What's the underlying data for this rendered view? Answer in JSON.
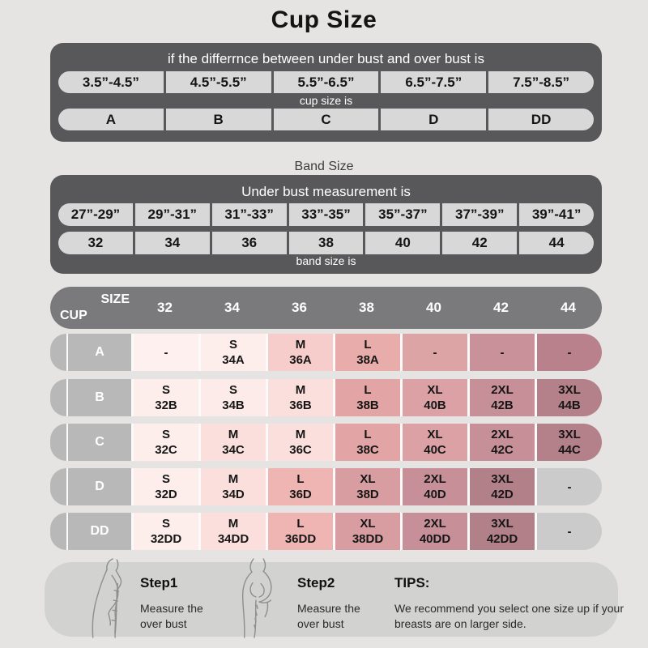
{
  "title": "Cup Size",
  "cup_section": {
    "caption": "if the differrnce between under bust and over bust is",
    "ranges": [
      "3.5”-4.5”",
      "4.5”-5.5”",
      "5.5”-6.5”",
      "6.5”-7.5”",
      "7.5”-8.5”"
    ],
    "mid_label": "cup size is",
    "cups": [
      "A",
      "B",
      "C",
      "D",
      "DD"
    ]
  },
  "band_section": {
    "title": "Band Size",
    "caption": "Under bust measurement is",
    "ranges": [
      "27”-29”",
      "29”-31”",
      "31”-33”",
      "33”-35”",
      "35”-37”",
      "37”-39”",
      "39”-41”"
    ],
    "bands": [
      "32",
      "34",
      "36",
      "38",
      "40",
      "42",
      "44"
    ],
    "bottom_label": "band size is"
  },
  "matrix": {
    "corner_top": "SIZE",
    "corner_bottom": "CUP",
    "columns": [
      "32",
      "34",
      "36",
      "38",
      "40",
      "42",
      "44"
    ],
    "rows": [
      {
        "cup": "A",
        "cells": [
          {
            "size": "-",
            "code": "",
            "bg": "#fdf0ee"
          },
          {
            "size": "S",
            "code": "34A",
            "bg": "#fdeeec"
          },
          {
            "size": "M",
            "code": "36A",
            "bg": "#f6cdca"
          },
          {
            "size": "L",
            "code": "38A",
            "bg": "#e8acab"
          },
          {
            "size": "-",
            "code": "",
            "bg": "#dda4a6"
          },
          {
            "size": "-",
            "code": "",
            "bg": "#c9929b"
          },
          {
            "size": "-",
            "code": "",
            "bg": "#b9818b"
          }
        ]
      },
      {
        "cup": "B",
        "cells": [
          {
            "size": "S",
            "code": "32B",
            "bg": "#fdeeec"
          },
          {
            "size": "S",
            "code": "34B",
            "bg": "#fcebe9"
          },
          {
            "size": "M",
            "code": "36B",
            "bg": "#fbdfdc"
          },
          {
            "size": "L",
            "code": "38B",
            "bg": "#e2a4a4"
          },
          {
            "size": "XL",
            "code": "40B",
            "bg": "#dba1a4"
          },
          {
            "size": "2XL",
            "code": "42B",
            "bg": "#c79099"
          },
          {
            "size": "3XL",
            "code": "44B",
            "bg": "#b48089"
          }
        ]
      },
      {
        "cup": "C",
        "cells": [
          {
            "size": "S",
            "code": "32C",
            "bg": "#fdeeec"
          },
          {
            "size": "M",
            "code": "34C",
            "bg": "#fbdfdc"
          },
          {
            "size": "M",
            "code": "36C",
            "bg": "#fbdfdc"
          },
          {
            "size": "L",
            "code": "38C",
            "bg": "#e2a4a4"
          },
          {
            "size": "XL",
            "code": "40C",
            "bg": "#dba1a4"
          },
          {
            "size": "2XL",
            "code": "42C",
            "bg": "#c79099"
          },
          {
            "size": "3XL",
            "code": "44C",
            "bg": "#b48089"
          }
        ]
      },
      {
        "cup": "D",
        "cells": [
          {
            "size": "S",
            "code": "32D",
            "bg": "#fdeeec"
          },
          {
            "size": "M",
            "code": "34D",
            "bg": "#fbdfdc"
          },
          {
            "size": "L",
            "code": "36D",
            "bg": "#eeb5b2"
          },
          {
            "size": "XL",
            "code": "38D",
            "bg": "#d89da0"
          },
          {
            "size": "2XL",
            "code": "40D",
            "bg": "#c79099"
          },
          {
            "size": "3XL",
            "code": "42D",
            "bg": "#b28089"
          },
          {
            "size": "-",
            "code": "",
            "bg": "#cbcbcb"
          }
        ]
      },
      {
        "cup": "DD",
        "cells": [
          {
            "size": "S",
            "code": "32DD",
            "bg": "#fdeeec"
          },
          {
            "size": "M",
            "code": "34DD",
            "bg": "#fbdfdc"
          },
          {
            "size": "L",
            "code": "36DD",
            "bg": "#eeb5b2"
          },
          {
            "size": "XL",
            "code": "38DD",
            "bg": "#d89da0"
          },
          {
            "size": "2XL",
            "code": "40DD",
            "bg": "#c79099"
          },
          {
            "size": "3XL",
            "code": "42DD",
            "bg": "#b28089"
          },
          {
            "size": "-",
            "code": "",
            "bg": "#cbcbcb"
          }
        ]
      }
    ]
  },
  "footer": {
    "steps": [
      {
        "title": "Step1",
        "line1": "Measure the",
        "line2": "over bust"
      },
      {
        "title": "Step2",
        "line1": "Measure the",
        "line2": "over bust"
      }
    ],
    "tips_title": "TIPS:",
    "tips_text": "We recommend you select one size up if your breasts are on larger side."
  },
  "icons": {
    "figure1": "measuring-over-bust-side-figure-icon",
    "figure2": "measuring-over-bust-front-figure-icon"
  },
  "colors": {
    "page_bg": "#e5e4e2",
    "dark_box": "#58585a",
    "header_bar": "#7a797b",
    "pill_bg": "#d8d8d8",
    "row_label_gray": "#b9b8b8",
    "empty_cell_gray": "#cbcbcb",
    "footer_bg": "#d2d2d1"
  }
}
